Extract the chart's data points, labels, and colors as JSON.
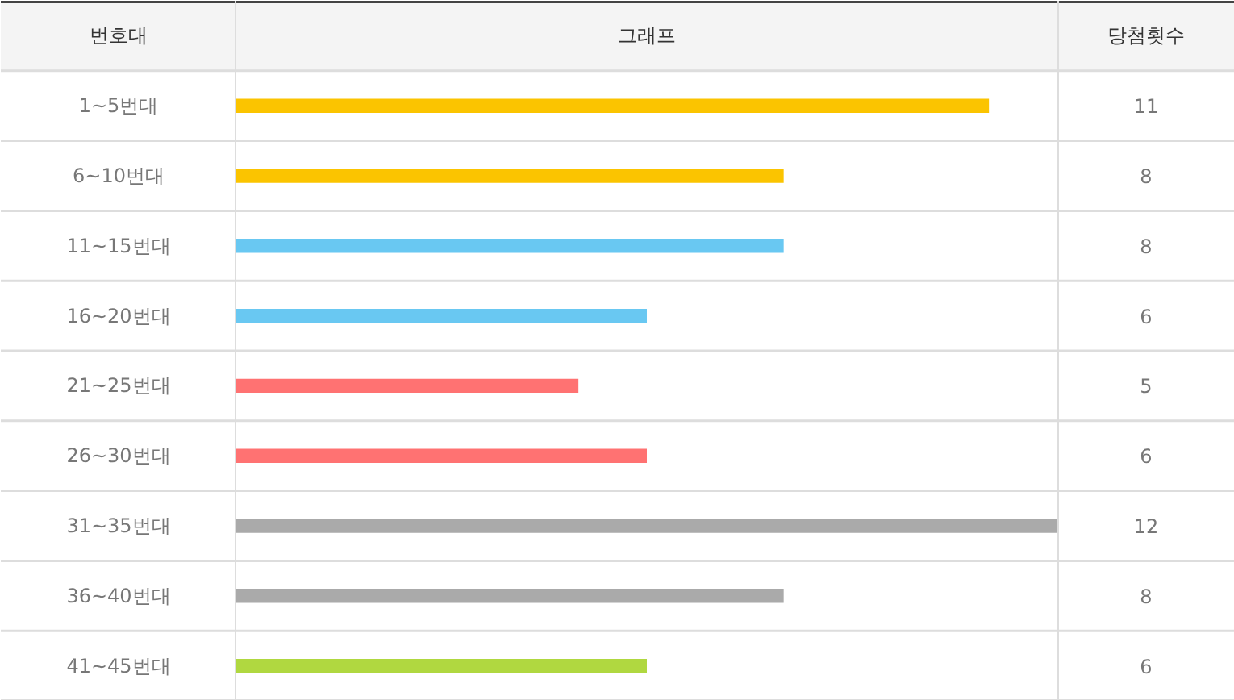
{
  "chart_data": {
    "type": "bar",
    "orientation": "horizontal",
    "ylabel": "번호대",
    "xlabel": "그래프",
    "annotations": [
      "당첨횟수"
    ],
    "categories": [
      "1~5번대",
      "6~10번대",
      "11~15번대",
      "16~20번대",
      "21~25번대",
      "26~30번대",
      "31~35번대",
      "36~40번대",
      "41~45번대"
    ],
    "values": [
      11,
      8,
      8,
      6,
      5,
      6,
      12,
      8,
      6
    ],
    "colors": [
      "#fbc400",
      "#fbc400",
      "#69c8f2",
      "#69c8f2",
      "#ff7272",
      "#ff7272",
      "#aaaaaa",
      "#aaaaaa",
      "#b0d840"
    ],
    "xlim": [
      0,
      12
    ],
    "data_labels": true,
    "tick_labels": "y"
  }
}
